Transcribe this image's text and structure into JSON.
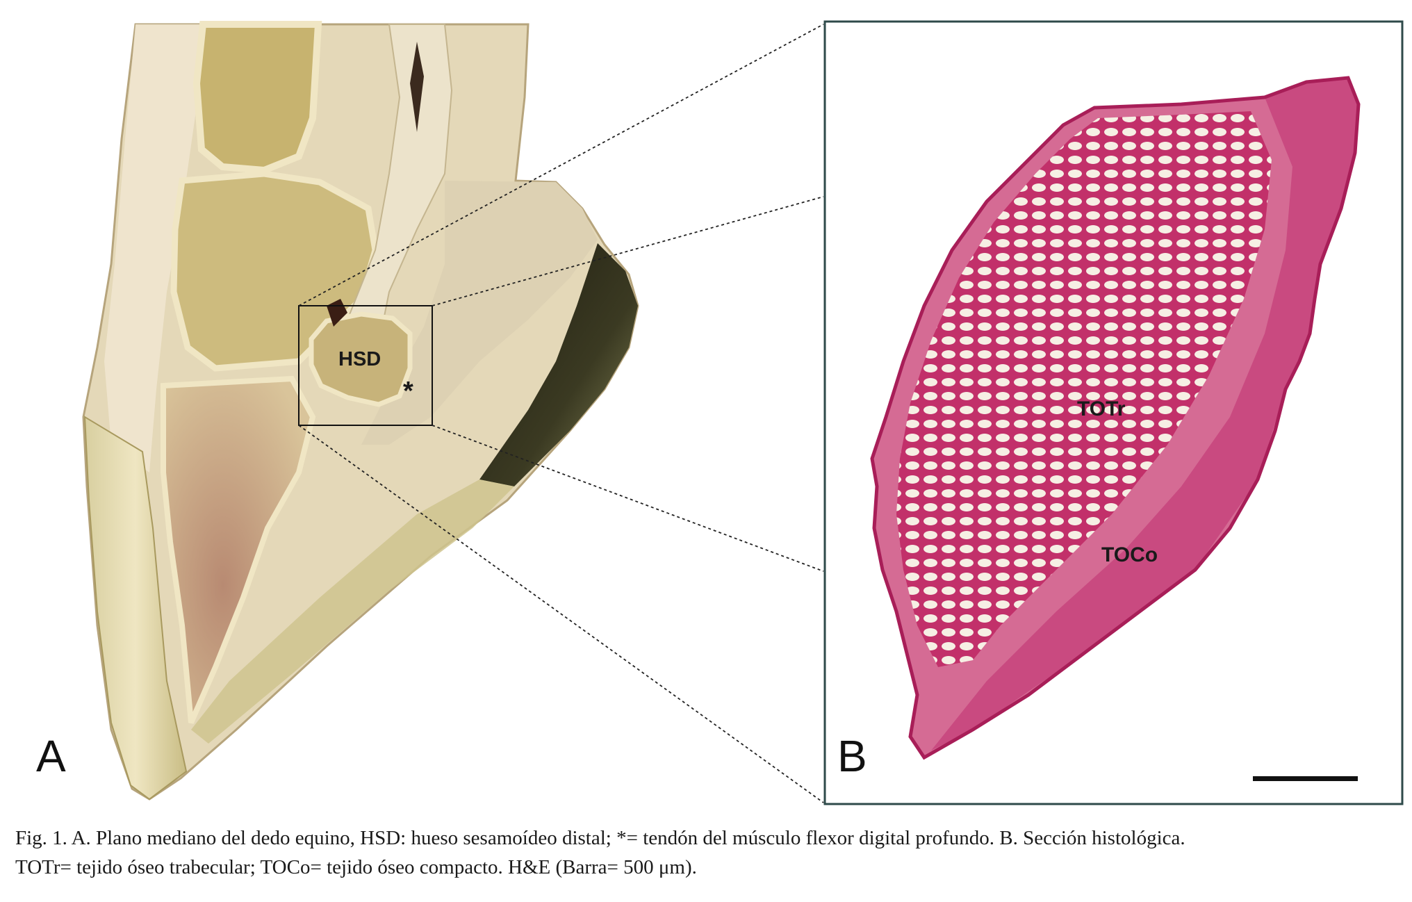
{
  "panel_a": {
    "letter": "A",
    "label_hsd": "HSD",
    "label_asterisk": "*"
  },
  "panel_b": {
    "letter": "B",
    "label_totr": "TOTr",
    "label_toco": "TOCo"
  },
  "colors": {
    "specimen_cream": "#e8dcc0",
    "bone_yellow": "#c9b57a",
    "hoof_dark": "#2c2a1c",
    "stain_magenta": "#c2306a",
    "stain_light": "#d56b94",
    "frame": "#2e4a4a"
  },
  "caption": {
    "line1": "Fig. 1. A. Plano mediano del dedo equino, HSD: hueso sesamoídeo distal; *= tendón del músculo flexor digital profundo. B. Sección histológica.",
    "line2": "TOTr= tejido óseo trabecular; TOCo= tejido óseo compacto. H&E (Barra= 500 μm)."
  }
}
